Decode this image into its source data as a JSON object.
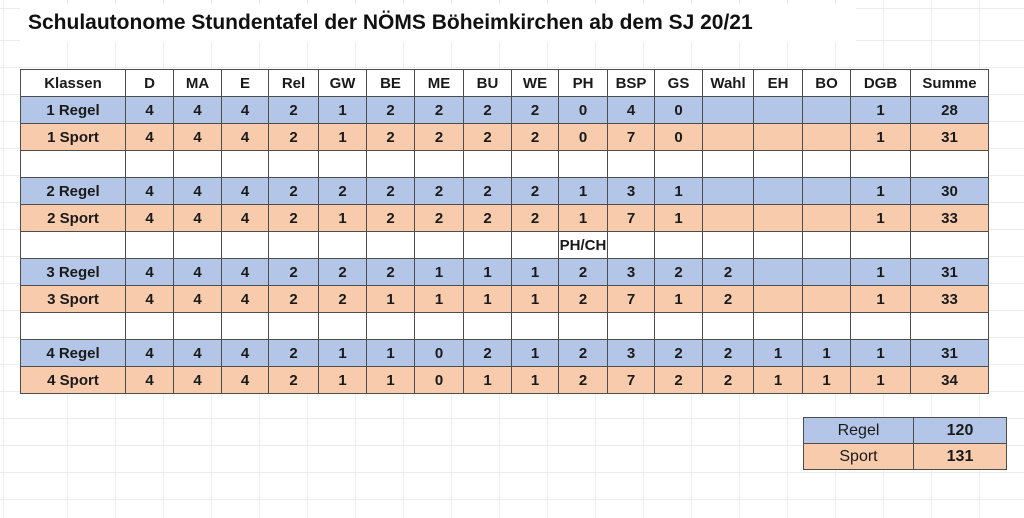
{
  "title": "Schulautonome Stundentafel der NÖMS Böheimkirchen ab dem SJ 20/21",
  "table": {
    "columns": [
      "Klassen",
      "D",
      "MA",
      "E",
      "Rel",
      "GW",
      "BE",
      "ME",
      "BU",
      "WE",
      "PH",
      "BSP",
      "GS",
      "Wahl",
      "EH",
      "BO",
      "DGB",
      "Summe"
    ],
    "rows": [
      {
        "type": "regel",
        "label": "1 Regel",
        "values": [
          "4",
          "4",
          "4",
          "2",
          "1",
          "2",
          "2",
          "2",
          "2",
          "0",
          "4",
          "0",
          "",
          "",
          "",
          "1",
          "28"
        ]
      },
      {
        "type": "sport",
        "label": "1 Sport",
        "values": [
          "4",
          "4",
          "4",
          "2",
          "1",
          "2",
          "2",
          "2",
          "2",
          "0",
          "7",
          "0",
          "",
          "",
          "",
          "1",
          "31"
        ]
      },
      {
        "type": "spacer",
        "label": "",
        "values": [
          "",
          "",
          "",
          "",
          "",
          "",
          "",
          "",
          "",
          "",
          "",
          "",
          "",
          "",
          "",
          "",
          ""
        ]
      },
      {
        "type": "regel",
        "label": "2 Regel",
        "values": [
          "4",
          "4",
          "4",
          "2",
          "2",
          "2",
          "2",
          "2",
          "2",
          "1",
          "3",
          "1",
          "",
          "",
          "",
          "1",
          "30"
        ]
      },
      {
        "type": "sport",
        "label": "2 Sport",
        "values": [
          "4",
          "4",
          "4",
          "2",
          "1",
          "2",
          "2",
          "2",
          "2",
          "1",
          "7",
          "1",
          "",
          "",
          "",
          "1",
          "33"
        ]
      },
      {
        "type": "note",
        "label": "",
        "values": [
          "",
          "",
          "",
          "",
          "",
          "",
          "",
          "",
          "",
          "PH/CH",
          "",
          "",
          "",
          "",
          "",
          "",
          ""
        ]
      },
      {
        "type": "regel",
        "label": "3 Regel",
        "values": [
          "4",
          "4",
          "4",
          "2",
          "2",
          "2",
          "1",
          "1",
          "1",
          "2",
          "3",
          "2",
          "2",
          "",
          "",
          "1",
          "31"
        ]
      },
      {
        "type": "sport",
        "label": "3 Sport",
        "values": [
          "4",
          "4",
          "4",
          "2",
          "2",
          "1",
          "1",
          "1",
          "1",
          "2",
          "7",
          "1",
          "2",
          "",
          "",
          "1",
          "33"
        ]
      },
      {
        "type": "spacer",
        "label": "",
        "values": [
          "",
          "",
          "",
          "",
          "",
          "",
          "",
          "",
          "",
          "",
          "",
          "",
          "",
          "",
          "",
          "",
          ""
        ]
      },
      {
        "type": "regel",
        "label": "4 Regel",
        "values": [
          "4",
          "4",
          "4",
          "2",
          "1",
          "1",
          "0",
          "2",
          "1",
          "2",
          "3",
          "2",
          "2",
          "1",
          "1",
          "1",
          "31"
        ]
      },
      {
        "type": "sport",
        "label": "4 Sport",
        "values": [
          "4",
          "4",
          "4",
          "2",
          "1",
          "1",
          "0",
          "1",
          "1",
          "2",
          "7",
          "2",
          "2",
          "1",
          "1",
          "1",
          "34"
        ]
      }
    ]
  },
  "summary": {
    "rows": [
      {
        "type": "regel",
        "label": "Regel",
        "value": "120"
      },
      {
        "type": "sport",
        "label": "Sport",
        "value": "131"
      }
    ]
  },
  "colors": {
    "regel_row": "#b4c6e7",
    "sport_row": "#f8cbad",
    "border": "#4d4d4d"
  }
}
